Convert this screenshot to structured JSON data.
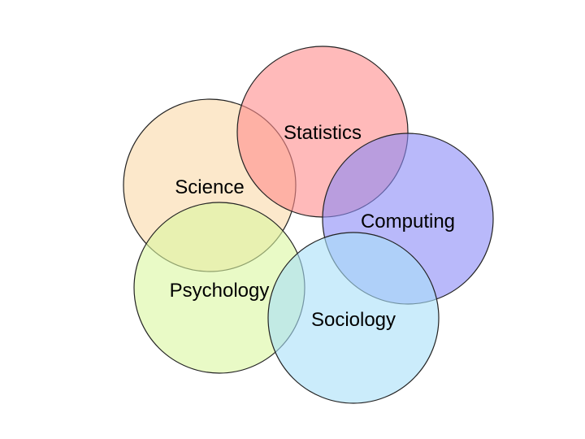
{
  "diagram": {
    "type": "overlapping-circles",
    "circles": [
      {
        "id": "science",
        "label": "Science",
        "fill": "#FAD9A8",
        "stroke": "#222222"
      },
      {
        "id": "statistics",
        "label": "Statistics",
        "fill": "#FF8C8C",
        "stroke": "#222222"
      },
      {
        "id": "computing",
        "label": "Computing",
        "fill": "#8A8AF6",
        "stroke": "#222222"
      },
      {
        "id": "psychology",
        "label": "Psychology",
        "fill": "#DAF7A0",
        "stroke": "#222222"
      },
      {
        "id": "sociology",
        "label": "Sociology",
        "fill": "#A8E0F9",
        "stroke": "#222222"
      }
    ]
  }
}
